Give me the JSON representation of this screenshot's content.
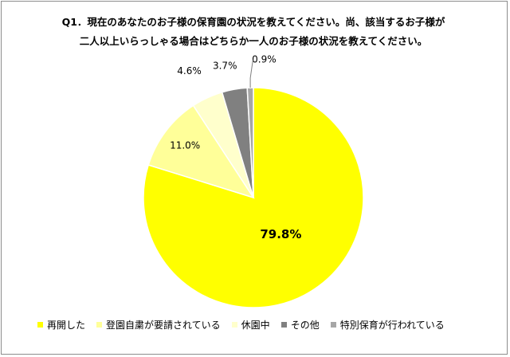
{
  "title": {
    "line1": "Q1．現在のあなたのお子様の保育園の状況を教えてください。尚、該当するお子様が",
    "line2": "二人以上いらっしゃる場合はどちらか一人のお子様の状況を教えてください。"
  },
  "chart_data": {
    "type": "pie",
    "categories": [
      "再開した",
      "登園自粛が要請されている",
      "休園中",
      "その他",
      "特別保育が行われている"
    ],
    "values": [
      79.8,
      11.0,
      4.6,
      3.7,
      0.9
    ],
    "labels": [
      "79.8%",
      "11.0%",
      "4.6%",
      "3.7%",
      "0.9%"
    ],
    "colors": [
      "#ffff00",
      "#ffff99",
      "#ffffcc",
      "#808080",
      "#a6a6a6"
    ],
    "start_angle_deg": 0,
    "direction": "clockwise",
    "legend_position": "bottom"
  }
}
